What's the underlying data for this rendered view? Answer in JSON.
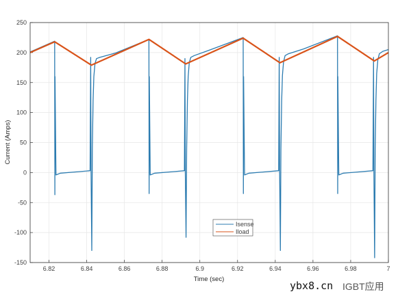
{
  "chart_data": {
    "type": "line",
    "title": "",
    "xlabel": "Time (sec)",
    "ylabel": "Current (Amps)",
    "xlim": [
      6.81,
      7.0
    ],
    "ylim": [
      -150,
      250
    ],
    "xticks": [
      6.82,
      6.84,
      6.86,
      6.88,
      6.9,
      6.92,
      6.94,
      6.96,
      6.98,
      7
    ],
    "xtick_labels": [
      "6.82",
      "6.84",
      "6.86",
      "6.88",
      "6.9",
      "6.92",
      "6.94",
      "6.96",
      "6.98",
      "7"
    ],
    "yticks": [
      -150,
      -100,
      -50,
      0,
      50,
      100,
      150,
      200,
      250
    ],
    "ytick_labels": [
      "-150",
      "-100",
      "-50",
      "0",
      "50",
      "100",
      "150",
      "200",
      "250"
    ],
    "grid": true,
    "legend_placement": "bottom-center",
    "series": [
      {
        "name": "Isense",
        "color": "#2b7bb0",
        "x": [
          6.81,
          6.823,
          6.8231,
          6.8232,
          6.8237,
          6.826,
          6.834,
          6.8418,
          6.8421,
          6.8423,
          6.8427,
          6.843,
          6.8434,
          6.8438,
          6.8444,
          6.8452,
          6.847,
          6.855,
          6.873,
          6.8731,
          6.8732,
          6.8737,
          6.876,
          6.884,
          6.8918,
          6.8921,
          6.8923,
          6.8927,
          6.893,
          6.8934,
          6.8938,
          6.8944,
          6.8952,
          6.897,
          6.905,
          6.923,
          6.9231,
          6.9232,
          6.9237,
          6.926,
          6.934,
          6.9418,
          6.9421,
          6.9423,
          6.9427,
          6.943,
          6.9434,
          6.9438,
          6.9444,
          6.9452,
          6.947,
          6.955,
          6.973,
          6.9731,
          6.9732,
          6.9737,
          6.976,
          6.984,
          6.9918,
          6.9921,
          6.9923,
          6.9927,
          6.993,
          6.9934,
          6.9938,
          6.9944,
          6.9952,
          6.997,
          7.0
        ],
        "y": [
          201,
          219,
          -37,
          160,
          -4,
          -1,
          1,
          3,
          192,
          4,
          -130,
          40,
          120,
          160,
          182,
          190,
          192,
          199,
          222,
          -35,
          160,
          -4,
          -1,
          1,
          3,
          190,
          4,
          -108,
          40,
          120,
          160,
          183,
          192,
          195,
          204,
          225,
          -35,
          160,
          -4,
          -1,
          1,
          3,
          192,
          4,
          -130,
          40,
          120,
          162,
          185,
          195,
          198,
          206,
          228,
          -35,
          160,
          -4,
          -1,
          1,
          3,
          192,
          4,
          -142,
          40,
          120,
          165,
          188,
          198,
          202,
          205
        ]
      },
      {
        "name": "Iload",
        "color": "#d95319",
        "x": [
          6.81,
          6.823,
          6.8425,
          6.873,
          6.8925,
          6.923,
          6.9425,
          6.973,
          6.9925,
          7.0
        ],
        "y": [
          200,
          218,
          179,
          222,
          181,
          224,
          183,
          227,
          186,
          200
        ]
      }
    ]
  },
  "watermark": {
    "site": "ybx8.cn",
    "brand": "IGBT应用"
  }
}
